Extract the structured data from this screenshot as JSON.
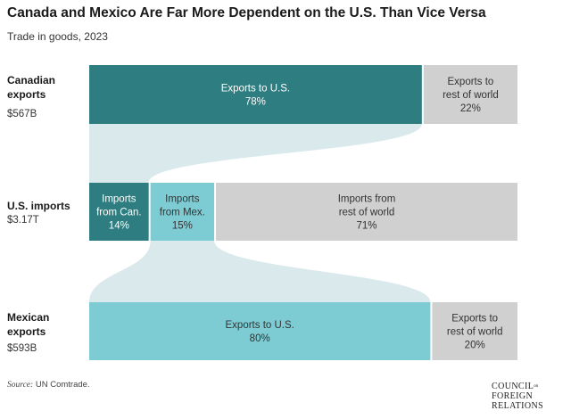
{
  "chart_data": {
    "type": "sankey",
    "title": "Canada and Mexico Are Far More Dependent on the U.S. Than Vice Versa",
    "subtitle": "Trade in goods, 2023",
    "rows": [
      {
        "key": "canada",
        "label_line1": "Canadian",
        "label_line2": "exports",
        "total": "$567B",
        "segments": [
          {
            "key": "ca-us",
            "label_lines": [
              "Exports to U.S.",
              "78%"
            ],
            "value": 78,
            "color": "#2e7d80",
            "text_color": "#ffffff"
          },
          {
            "key": "ca-row",
            "label_lines": [
              "Exports to",
              "rest of world",
              "22%"
            ],
            "value": 22,
            "color": "#d0d0d0",
            "text_color": "#333333"
          }
        ]
      },
      {
        "key": "us",
        "label_line1": "U.S. imports",
        "label_line2": "",
        "total": "$3.17T",
        "segments": [
          {
            "key": "us-can",
            "label_lines": [
              "Imports",
              "from Can.",
              "14%"
            ],
            "value": 14,
            "color": "#2e7d80",
            "text_color": "#ffffff"
          },
          {
            "key": "us-mex",
            "label_lines": [
              "Imports",
              "from Mex.",
              "15%"
            ],
            "value": 15,
            "color": "#7dccd4",
            "text_color": "#333333"
          },
          {
            "key": "us-row",
            "label_lines": [
              "Imports from",
              "rest of world",
              "71%"
            ],
            "value": 71,
            "color": "#d0d0d0",
            "text_color": "#333333"
          }
        ]
      },
      {
        "key": "mexico",
        "label_line1": "Mexican",
        "label_line2": "exports",
        "total": "$593B",
        "segments": [
          {
            "key": "mx-us",
            "label_lines": [
              "Exports to U.S.",
              "80%"
            ],
            "value": 80,
            "color": "#7dccd4",
            "text_color": "#333333"
          },
          {
            "key": "mx-row",
            "label_lines": [
              "Exports to",
              "rest of world",
              "20%"
            ],
            "value": 20,
            "color": "#d0d0d0",
            "text_color": "#333333"
          }
        ]
      }
    ],
    "flows": [
      {
        "from": "ca-us",
        "to": "us-can",
        "color": "#d9e9ec"
      },
      {
        "from": "us-mex",
        "to": "mx-us",
        "color": "#d9e9ec"
      }
    ]
  },
  "source_label": "Source:",
  "source_text": "UN Comtrade.",
  "logo": {
    "line1": "COUNCIL",
    "small": "on",
    "line2": "FOREIGN",
    "line3": "RELATIONS"
  }
}
